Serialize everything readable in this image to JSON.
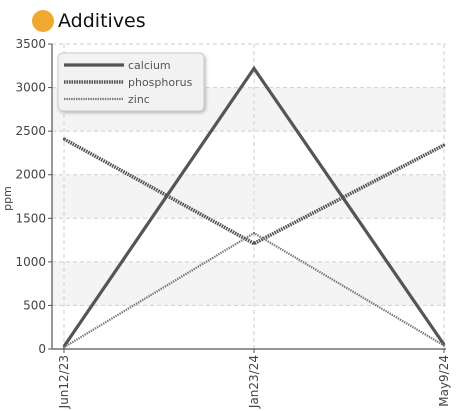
{
  "header": {
    "title": "Additives",
    "dot_color": "#F0A830"
  },
  "chart_data": {
    "type": "line",
    "title": "Additives",
    "xlabel": "",
    "ylabel": "ppm",
    "categories": [
      "Jun12/23",
      "Jan23/24",
      "May9/24"
    ],
    "ylim": [
      0,
      3500
    ],
    "yticks": [
      0,
      500,
      1000,
      1500,
      2000,
      2500,
      3000,
      3500
    ],
    "grid": true,
    "legend_position": "top-left",
    "series": [
      {
        "name": "calcium",
        "values": [
          30,
          3220,
          50
        ],
        "color": "#555555",
        "style": "solid"
      },
      {
        "name": "phosphorus",
        "values": [
          2410,
          1210,
          2340
        ],
        "color": "#555555",
        "style": "dotted-thick"
      },
      {
        "name": "zinc",
        "values": [
          20,
          1330,
          40
        ],
        "color": "#777777",
        "style": "dotted-thin"
      }
    ]
  }
}
